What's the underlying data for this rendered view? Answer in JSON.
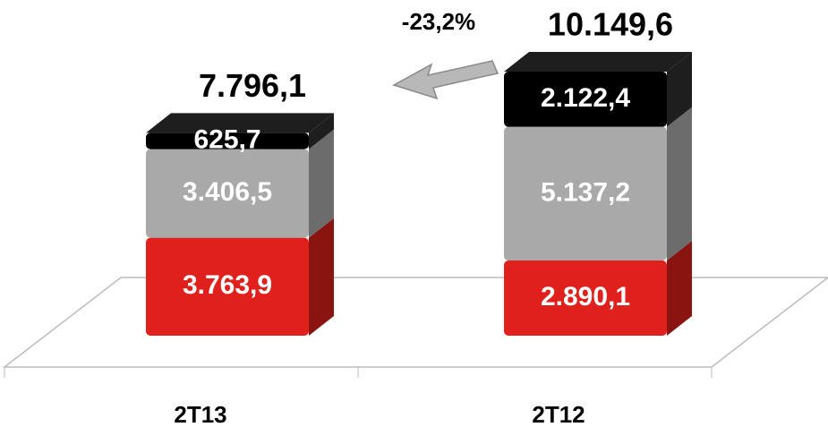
{
  "chart_data": {
    "type": "bar",
    "stacked": true,
    "three_d": true,
    "categories": [
      "2T13",
      "2T12"
    ],
    "series": [
      {
        "color": "#e0201c",
        "side_color": "#8a1410",
        "values": [
          3763.9,
          2890.1
        ],
        "value_labels": [
          "3.763,9",
          "2.890,1"
        ]
      },
      {
        "color": "#a9a9a9",
        "side_color": "#6c6c6c",
        "values": [
          3406.5,
          5137.2
        ],
        "value_labels": [
          "3.406,5",
          "5.137,2"
        ]
      },
      {
        "color": "#000000",
        "side_color": "#1e1e1e",
        "values": [
          625.7,
          2122.4
        ],
        "value_labels": [
          "625,7",
          "2.122,4"
        ]
      }
    ],
    "totals": {
      "values": [
        7796.1,
        10149.6
      ],
      "value_labels": [
        "7.796,1",
        "10.149,6"
      ]
    },
    "annotation": "-23,2%"
  }
}
